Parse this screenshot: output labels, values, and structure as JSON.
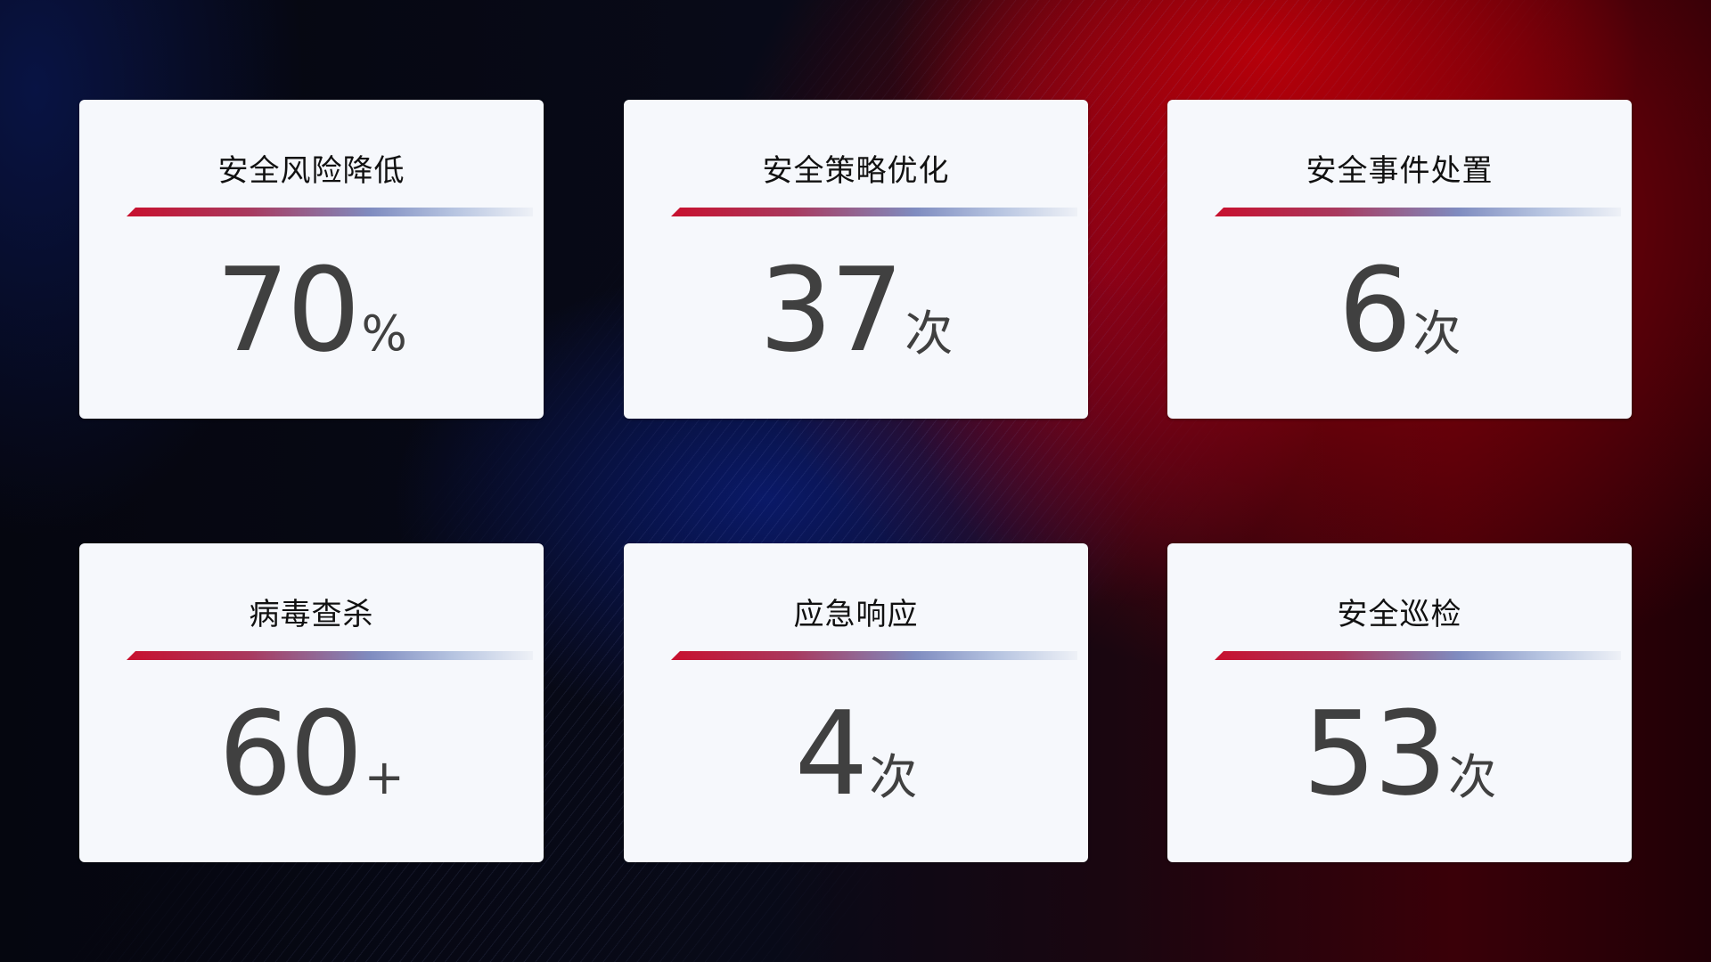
{
  "cards": [
    {
      "title": "安全风险降低",
      "value": "70",
      "unit": "%"
    },
    {
      "title": "安全策略优化",
      "value": "37",
      "unit": "次"
    },
    {
      "title": "安全事件处置",
      "value": "6",
      "unit": "次"
    },
    {
      "title": "病毒查杀",
      "value": "60",
      "unit": "+"
    },
    {
      "title": "应急响应",
      "value": "4",
      "unit": "次"
    },
    {
      "title": "安全巡检",
      "value": "53",
      "unit": "次"
    }
  ],
  "colors": {
    "accent_red": "#c8102e",
    "accent_blue": "#7f8cc0",
    "card_bg": "#f6f8fc",
    "value_text": "#404040"
  }
}
